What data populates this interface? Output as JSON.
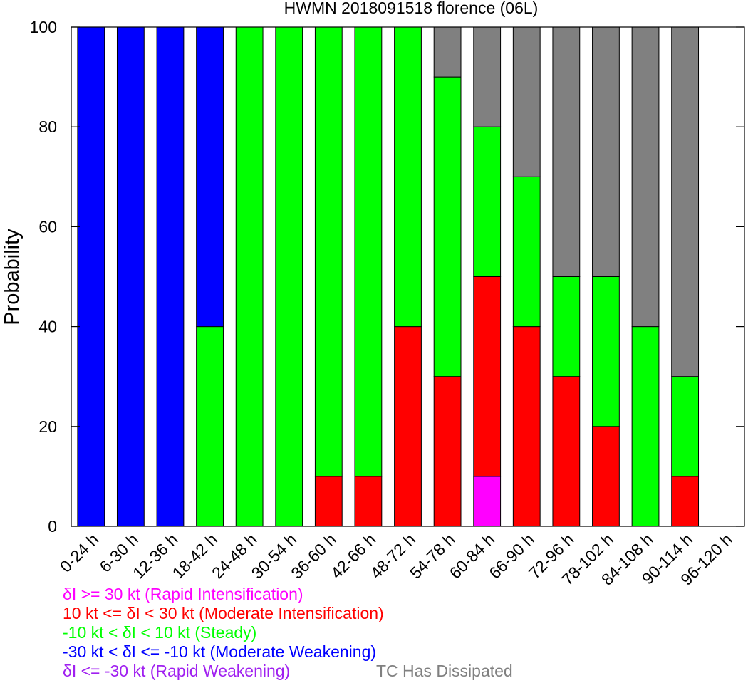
{
  "chart_data": {
    "type": "bar",
    "stacked": true,
    "title": "HWMN 2018091518 florence (06L)",
    "ylabel": "Probability",
    "xlabel": "",
    "ylim": [
      0,
      100
    ],
    "yticks": [
      0,
      20,
      40,
      60,
      80,
      100
    ],
    "categories": [
      "0-24 h",
      "6-30 h",
      "12-36 h",
      "18-42 h",
      "24-48 h",
      "30-54 h",
      "36-60 h",
      "42-66 h",
      "48-72 h",
      "54-78 h",
      "60-84 h",
      "66-90 h",
      "72-96 h",
      "78-102 h",
      "84-108 h",
      "90-114 h",
      "96-120 h"
    ],
    "series": [
      {
        "name": "δI >= 30 kt (Rapid Intensification)",
        "color": "#ff00ff",
        "values": [
          0,
          0,
          0,
          0,
          0,
          0,
          0,
          0,
          0,
          0,
          10,
          0,
          0,
          0,
          0,
          0,
          0
        ]
      },
      {
        "name": "10 kt <= δI < 30 kt (Moderate Intensification)",
        "color": "#ff0000",
        "values": [
          0,
          0,
          0,
          0,
          0,
          0,
          10,
          10,
          40,
          30,
          40,
          40,
          30,
          20,
          0,
          10,
          0
        ]
      },
      {
        "name": "-10 kt < δI < 10 kt (Steady)",
        "color": "#00ff00",
        "values": [
          0,
          0,
          0,
          40,
          100,
          100,
          90,
          90,
          60,
          60,
          30,
          30,
          20,
          30,
          40,
          20,
          0
        ]
      },
      {
        "name": "-30 kt < δI <= -10 kt (Moderate Weakening)",
        "color": "#0000ff",
        "values": [
          100,
          100,
          100,
          60,
          0,
          0,
          0,
          0,
          0,
          0,
          0,
          0,
          0,
          0,
          0,
          0,
          0
        ]
      },
      {
        "name": "δI <= -30 kt (Rapid Weakening)",
        "color": "#a020f0",
        "values": [
          0,
          0,
          0,
          0,
          0,
          0,
          0,
          0,
          0,
          0,
          0,
          0,
          0,
          0,
          0,
          0,
          0
        ]
      },
      {
        "name": "TC Has Dissipated",
        "color": "#808080",
        "values": [
          0,
          0,
          0,
          0,
          0,
          0,
          0,
          0,
          0,
          10,
          20,
          30,
          50,
          50,
          60,
          70,
          0
        ]
      }
    ],
    "legend": {
      "ri": {
        "prefix": "δ",
        "text": "I >= 30 kt (Rapid Intensification)",
        "color": "#ff00ff"
      },
      "mi": {
        "pre": "10 kt <= ",
        "prefix": "δ",
        "text": "I < 30 kt (Moderate Intensification)",
        "color": "#ff0000"
      },
      "steady": {
        "pre": "-10 kt < ",
        "prefix": "δ",
        "text": "I < 10 kt (Steady)",
        "color": "#00ff00"
      },
      "mw": {
        "pre": "-30 kt < ",
        "prefix": "δ",
        "text": "I <= -10 kt (Moderate Weakening)",
        "color": "#0000ff"
      },
      "rw": {
        "prefix": "δ",
        "text": "I <= -30 kt (Rapid Weakening)",
        "color": "#a020f0"
      },
      "dissipated": {
        "text": "TC Has Dissipated",
        "color": "#808080"
      }
    }
  }
}
